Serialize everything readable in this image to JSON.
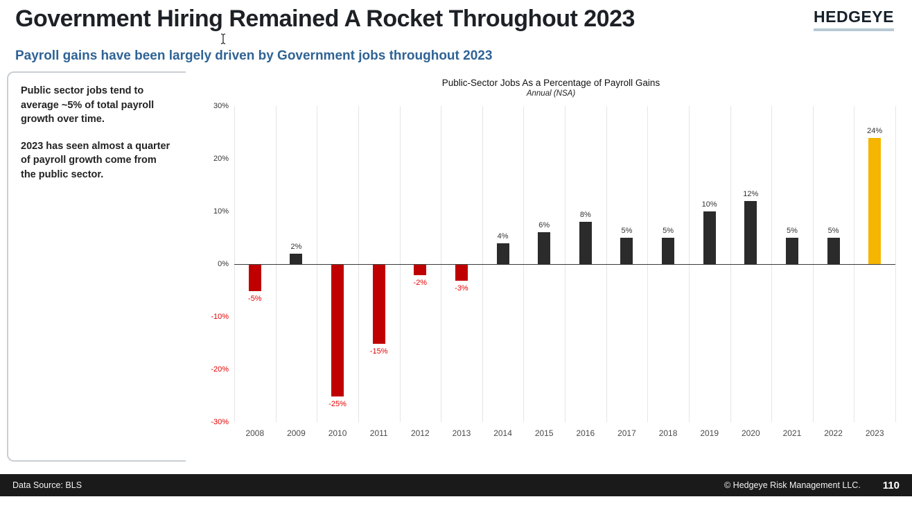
{
  "header": {
    "title": "Government Hiring Remained A Rocket Throughout 2023",
    "logo_text": "HEDGEYE"
  },
  "subtitle": "Payroll gains have been largely driven by Government jobs throughout 2023",
  "sidebar": {
    "paragraphs": [
      "Public sector jobs tend to average ~5% of total payroll growth over time.",
      "2023 has seen almost a quarter of payroll growth come from the public sector."
    ]
  },
  "chart_data": {
    "type": "bar",
    "title": "Public-Sector Jobs As a Percentage of Payroll Gains",
    "subtitle": "Annual (NSA)",
    "categories": [
      "2008",
      "2009",
      "2010",
      "2011",
      "2012",
      "2013",
      "2014",
      "2015",
      "2016",
      "2017",
      "2018",
      "2019",
      "2020",
      "2021",
      "2022",
      "2023"
    ],
    "values": [
      -5,
      2,
      -25,
      -15,
      -2,
      -3,
      4,
      6,
      8,
      5,
      5,
      10,
      12,
      5,
      5,
      24
    ],
    "labels": [
      "-5%",
      "2%",
      "-25%",
      "-15%",
      "-2%",
      "-3%",
      "4%",
      "6%",
      "8%",
      "5%",
      "5%",
      "10%",
      "12%",
      "5%",
      "5%",
      "24%"
    ],
    "ylim": [
      -30,
      30
    ],
    "ytick_step": 10,
    "ytick_labels": [
      "30%",
      "20%",
      "10%",
      "0%",
      "-10%",
      "-20%",
      "-30%"
    ],
    "grid": "vertical-only",
    "legend": "none",
    "highlight_index": 15,
    "colors": {
      "positive_bar": "#2b2b2b",
      "negative_bar": "#c00000",
      "highlight_bar": "#f5b500",
      "negative_text": "#e60000",
      "label_text": "#333333"
    }
  },
  "footer": {
    "source": "Data Source: BLS",
    "copyright": "© Hedgeye Risk Management LLC.",
    "page": "110"
  },
  "colors": {
    "accent_blue": "#2f6395",
    "footer_bg": "#1a1a1a",
    "logo_underline": "#b7c9d3"
  }
}
